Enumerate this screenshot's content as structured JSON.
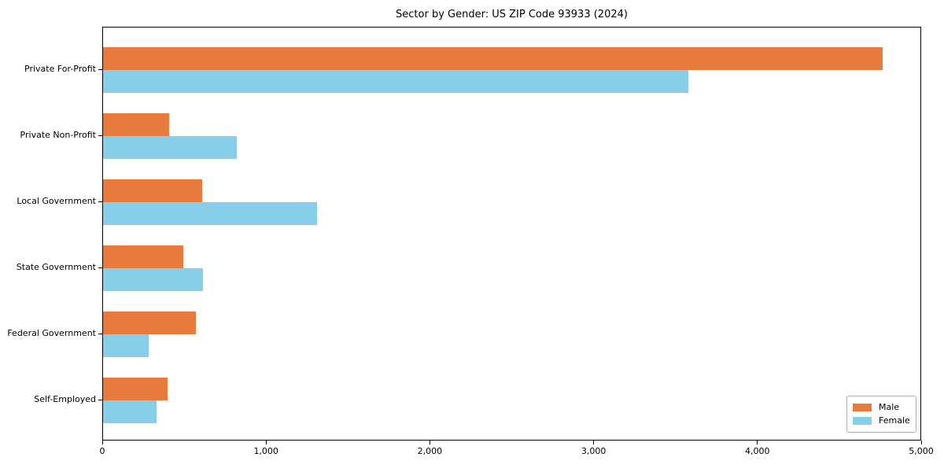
{
  "title": "Sector by Gender: US ZIP Code 93933 (2024)",
  "colors": {
    "male": "#E87A3D",
    "female": "#87CEE9",
    "axis": "#000000",
    "legend_border": "#b0b0b0",
    "background": "#ffffff"
  },
  "legend": {
    "position": "lower right",
    "items": [
      {
        "label": "Male"
      },
      {
        "label": "Female"
      }
    ]
  },
  "chart_data": {
    "type": "bar",
    "orientation": "horizontal",
    "title": "Sector by Gender: US ZIP Code 93933 (2024)",
    "xlabel": "",
    "ylabel": "",
    "categories": [
      "Private For-Profit",
      "Private Non-Profit",
      "Local Government",
      "State Government",
      "Federal Government",
      "Self-Employed"
    ],
    "series": [
      {
        "name": "Male",
        "color": "#E87A3D",
        "values": [
          4770,
          405,
          605,
          490,
          570,
          395
        ]
      },
      {
        "name": "Female",
        "color": "#87CEE9",
        "values": [
          3580,
          820,
          1310,
          610,
          280,
          325
        ]
      }
    ],
    "xlim": [
      0,
      5000
    ],
    "x_ticks": [
      0,
      1000,
      2000,
      3000,
      4000,
      5000
    ],
    "x_tick_labels": [
      "0",
      "1,000",
      "2,000",
      "3,000",
      "4,000",
      "5,000"
    ],
    "grid": false,
    "legend_position": "lower right"
  }
}
